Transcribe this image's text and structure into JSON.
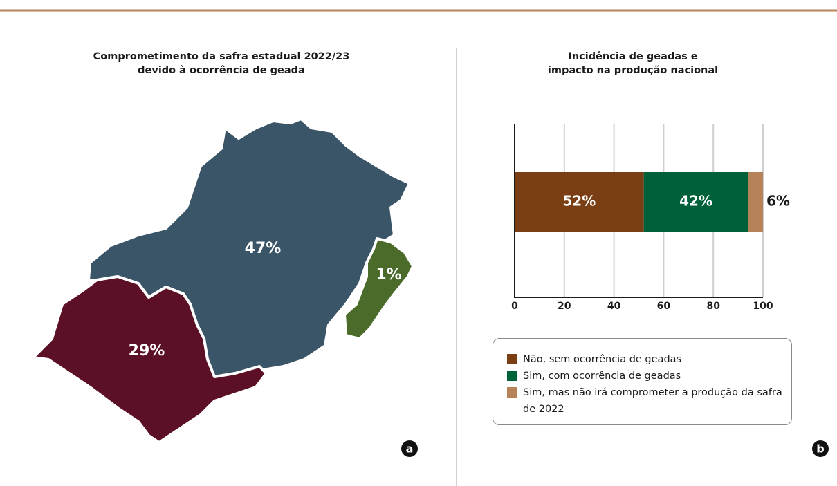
{
  "chart_data": [
    {
      "type": "map",
      "title": "Comprometimento da safra estadual 2022/23\ndevido à ocorrência de geada",
      "values": [
        47,
        29,
        1
      ],
      "value_labels": [
        "47%",
        "29%",
        "1%"
      ],
      "colors": [
        "#3a5468",
        "#5c1025",
        "#4a6b2a"
      ],
      "badge": "a"
    },
    {
      "type": "bar",
      "orientation": "horizontal",
      "stacked": true,
      "title": "Incidência de geadas e\nimpacto na produção nacional",
      "categories": [
        null
      ],
      "series": [
        {
          "name": "Não, sem ocorrência de geadas",
          "color": "#7a3e14",
          "values": [
            52
          ],
          "value_labels": [
            "52%"
          ]
        },
        {
          "name": "Sim, com ocorrência de geadas",
          "color": "#006039",
          "values": [
            42
          ],
          "value_labels": [
            "42%"
          ]
        },
        {
          "name": "Sim, mas não irá comprometer a produção da safra de 2022",
          "color": "#b5825a",
          "values": [
            6
          ],
          "value_labels": [
            "6%"
          ]
        }
      ],
      "xlim": [
        0,
        100
      ],
      "xticks": [
        0,
        20,
        40,
        60,
        80,
        100
      ],
      "grid": true,
      "legend": "bottom",
      "badge": "b"
    }
  ]
}
